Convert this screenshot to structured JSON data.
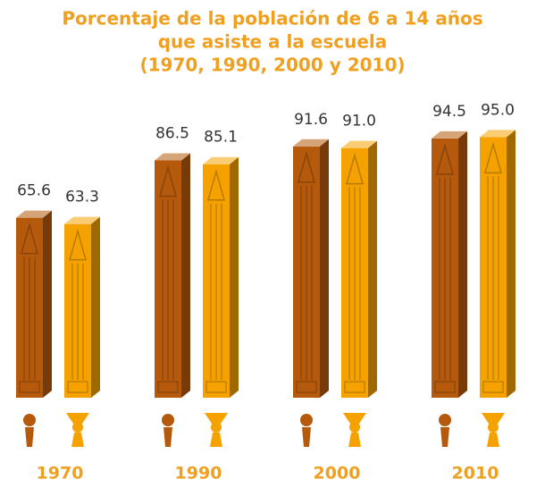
{
  "chart_data": {
    "type": "bar3d",
    "title": [
      "Porcentaje de la población de 6 a 14 años",
      "que asiste a la escuela",
      "(1970, 1990, 2000 y 2010)"
    ],
    "categories": [
      "1970",
      "1990",
      "2000",
      "2010"
    ],
    "series": [
      {
        "color": "#b55a0c",
        "values": [
          65.6,
          86.5,
          91.6,
          94.5
        ],
        "value_labels": [
          "65.6",
          "86.5",
          "91.6",
          "94.5"
        ]
      },
      {
        "color": "#f5a200",
        "values": [
          63.3,
          85.1,
          91.0,
          95.0
        ],
        "value_labels": [
          "63.3",
          "85.1",
          "91.0",
          "95.0"
        ]
      }
    ]
  }
}
